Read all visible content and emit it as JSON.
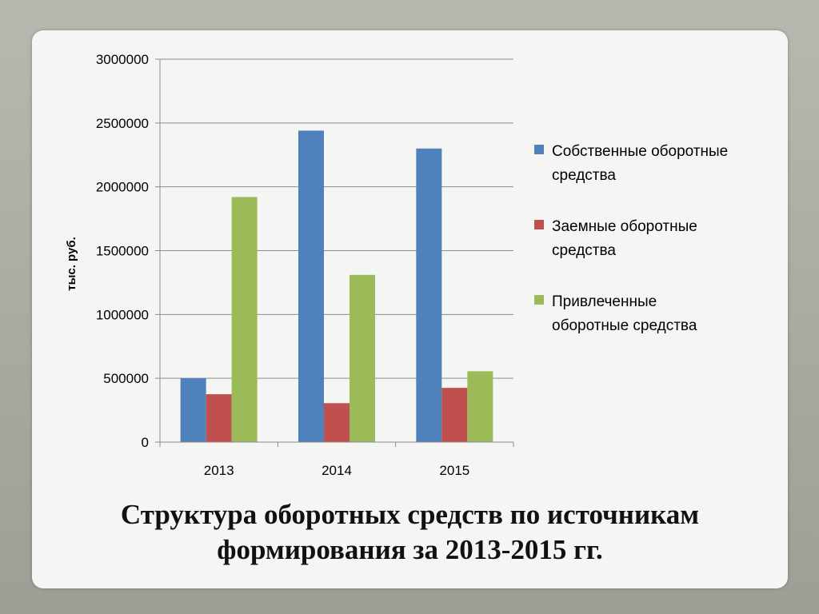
{
  "chart_data": {
    "type": "bar",
    "title": "Структура оборотных средств по источникам формирования за 2013-2015 гг.",
    "title_lines": [
      "Структура оборотных средств по источникам",
      "формирования за 2013-2015 гг."
    ],
    "xlabel": "",
    "ylabel": "тыс. руб.",
    "ylim": [
      0,
      3000000
    ],
    "yticks": [
      "0",
      "500000",
      "1000000",
      "1500000",
      "2000000",
      "2500000",
      "3000000"
    ],
    "categories": [
      "2013",
      "2014",
      "2015"
    ],
    "series": [
      {
        "name": "Собственные оборотные средства",
        "name_lines": [
          "Собственные оборотные",
          "средства"
        ],
        "color": "#4f81bd",
        "values": [
          500000,
          2440000,
          2300000
        ]
      },
      {
        "name": "Заемные оборотные средства",
        "name_lines": [
          "Заемные оборотные",
          "средства"
        ],
        "color": "#c0504d",
        "values": [
          375000,
          305000,
          425000
        ]
      },
      {
        "name": "Привлеченные оборотные средства",
        "name_lines": [
          "Привлеченные",
          "оборотные средства"
        ],
        "color": "#9bbb59",
        "values": [
          1920000,
          1310000,
          555000
        ]
      }
    ],
    "grid": true,
    "legend": "right"
  }
}
